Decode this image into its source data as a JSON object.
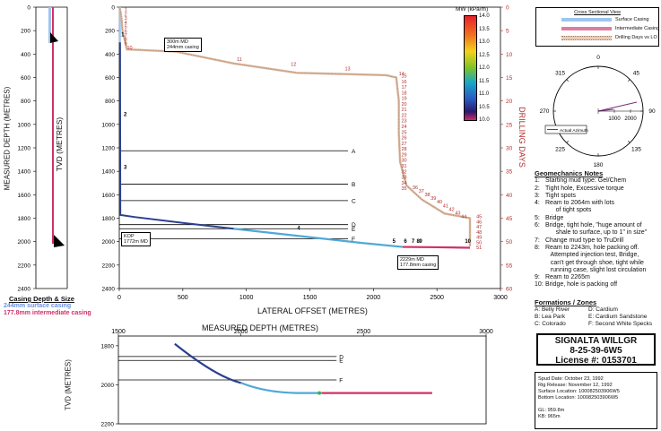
{
  "left_panel": {
    "ylabel": "MEASURED DEPTH (METRES)",
    "ticks": [
      "0",
      "200",
      "400",
      "600",
      "800",
      "1000",
      "1200",
      "1400",
      "1600",
      "1800",
      "2000",
      "2200",
      "2400"
    ]
  },
  "main_chart": {
    "ylabel": "TVD (METRES)",
    "xlabel": "LATERAL OFFSET (METRES)",
    "y2label": "DRILLING DAYS",
    "xticks": [
      "0",
      "500",
      "1000",
      "1500",
      "2000",
      "2500",
      "3000"
    ],
    "yticks": [
      "0",
      "200",
      "400",
      "600",
      "800",
      "1000",
      "1200",
      "1400",
      "1600",
      "1800",
      "2000",
      "2200",
      "2400"
    ],
    "y2ticks": [
      "0",
      "5",
      "10",
      "15",
      "20",
      "25",
      "30",
      "35",
      "40",
      "45",
      "50",
      "55",
      "60"
    ],
    "annotations": {
      "casing_300": [
        "300m MD",
        "244mm casing"
      ],
      "kop": [
        "KOP",
        "1772m MD"
      ],
      "casing_2229": [
        "2229m MD",
        "177.8mm casing"
      ]
    },
    "formation_lines": [
      {
        "label": "A",
        "tvd": 1225
      },
      {
        "label": "B",
        "tvd": 1510
      },
      {
        "label": "C",
        "tvd": 1650
      },
      {
        "label": "D",
        "tvd": 1855
      },
      {
        "label": "E",
        "tvd": 1890
      },
      {
        "label": "F",
        "tvd": 1975
      }
    ],
    "trajectory_note_labels": [
      "1",
      "2",
      "3",
      "4",
      "5",
      "6",
      "7",
      "8",
      "9",
      "10"
    ],
    "drilling_day_labels": [
      "1",
      "2",
      "3",
      "4",
      "5",
      "6",
      "7",
      "8",
      "9",
      "10",
      "11",
      "12",
      "13",
      "14",
      "15",
      "16",
      "17",
      "18",
      "19",
      "20",
      "21",
      "22",
      "23",
      "24",
      "25",
      "26",
      "27",
      "28",
      "29",
      "30",
      "31",
      "32",
      "33",
      "34",
      "35",
      "36",
      "37",
      "38",
      "39",
      "40",
      "41",
      "42",
      "43",
      "44",
      "45",
      "46",
      "47",
      "48",
      "49",
      "50",
      "51"
    ]
  },
  "mw_scale": {
    "title": "MW (kPa/m)",
    "ticks": [
      "14.0",
      "13.5",
      "13.0",
      "12.5",
      "12.0",
      "11.5",
      "11.0",
      "10.5",
      "10.0"
    ]
  },
  "legend": {
    "title": "Cross Sectional View",
    "items": [
      "Surface Casing",
      "Intermediate Casing",
      "Drilling Days vs LO"
    ]
  },
  "compass": {
    "labels": [
      "0",
      "45",
      "90",
      "135",
      "180",
      "225",
      "270",
      "315"
    ],
    "radial": [
      "1000",
      "2000"
    ],
    "legend": "Actual Azimuth"
  },
  "notes": {
    "title": "Geomechanics Notes",
    "items": [
      {
        "n": "1:",
        "text": "Starting mud type: Gel/Chem"
      },
      {
        "n": "2:",
        "text": "Tight hole, Excessive torque"
      },
      {
        "n": "3:",
        "text": "Tight spots"
      },
      {
        "n": "4:",
        "text": "Ream to 2064m with lots"
      },
      {
        "n": "",
        "text": "      of tight spots"
      },
      {
        "n": "5:",
        "text": "Bridge"
      },
      {
        "n": "6:",
        "text": "Bridge, tight hole, \"huge amount of"
      },
      {
        "n": "",
        "text": "      shale to surface, up to 1\" in size\""
      },
      {
        "n": "7:",
        "text": "Change mud type to TruDrill"
      },
      {
        "n": "8:",
        "text": "Ream to 2243m, hole packing off."
      },
      {
        "n": "",
        "text": "   Attempted injection test, Bridge,"
      },
      {
        "n": "",
        "text": "   can't get through shoe, tight while"
      },
      {
        "n": "",
        "text": "   running case, slight lost circulation"
      },
      {
        "n": "9:",
        "text": "Ream to 2265m"
      },
      {
        "n": "10:",
        "text": "Bridge, hole is packing off"
      }
    ]
  },
  "formations": {
    "title": "Formations / Zones",
    "items": [
      "A:  Belly River",
      "D:  Cardium",
      "B:  Lea Park",
      "E:  Cardium Sandstone",
      "C:  Colorado",
      "F:  Second White Specks"
    ]
  },
  "well": {
    "line1": "SIGNALTA WILLGR",
    "line2": "8-25-39-6W5",
    "line3": "License #: 0153701"
  },
  "info": {
    "lines": [
      "Spud Date: October 23, 1992",
      "Rig Release: November 12, 1992",
      "Surface Location: 100082503906W5",
      "Bottom Location: 100082503906W5",
      "",
      "GL: 959.8m",
      "KB: 965m"
    ]
  },
  "casing": {
    "title": "Casing Depth & Size",
    "surface": "244mm surface casing",
    "intermediate": "177.8mm intermediate casing",
    "surface_color": "#6a8fe0",
    "intermediate_color": "#d0306a"
  },
  "bottom_chart": {
    "title": "MEASURED DEPTH (METRES)",
    "ylabel": "TVD (METRES)",
    "xticks": [
      "1500",
      "2000",
      "2500",
      "3000"
    ],
    "yticks": [
      "1800",
      "2000",
      "2200"
    ],
    "formation_labels": [
      "D",
      "E",
      "F"
    ]
  }
}
